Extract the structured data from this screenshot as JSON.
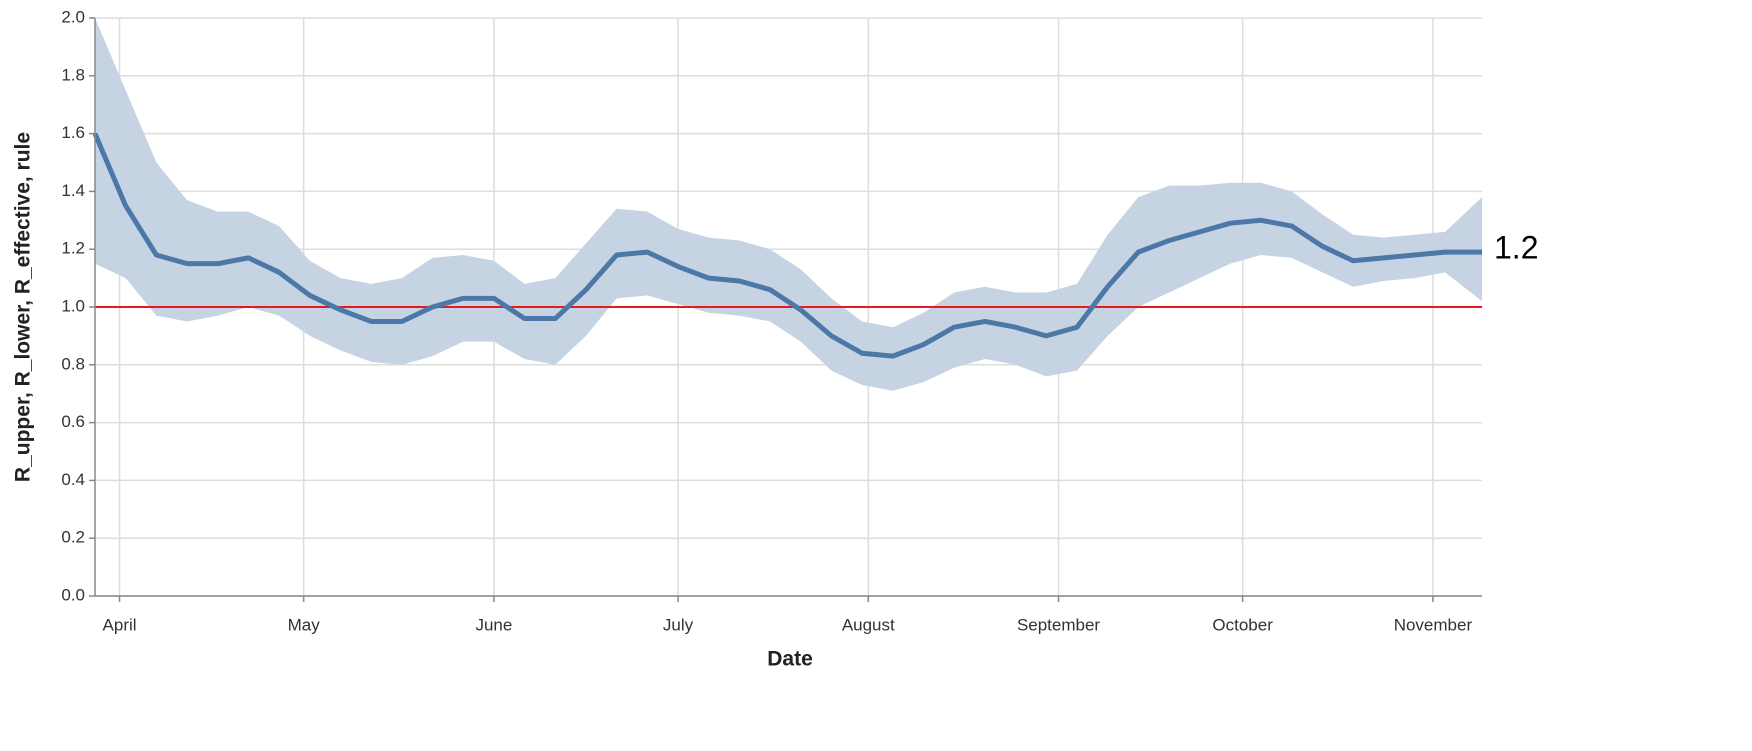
{
  "chart_data": {
    "type": "line",
    "x_label": "Date",
    "y_label": "R_upper, R_lower, R_effective, rule",
    "annotation": "1.2",
    "x": [
      0,
      5,
      10,
      15,
      20,
      25,
      30,
      35,
      40,
      45,
      50,
      55,
      60,
      65,
      70,
      75,
      80,
      85,
      90,
      95,
      100,
      105,
      110,
      115,
      120,
      125,
      130,
      135,
      140,
      145,
      150,
      155,
      160,
      165,
      170,
      175,
      180,
      185,
      190,
      195,
      200,
      205,
      210,
      215,
      220,
      226
    ],
    "effective": [
      1.6,
      1.35,
      1.18,
      1.15,
      1.15,
      1.17,
      1.12,
      1.04,
      0.99,
      0.95,
      0.95,
      1.0,
      1.03,
      1.03,
      0.96,
      0.96,
      1.06,
      1.18,
      1.19,
      1.14,
      1.1,
      1.09,
      1.06,
      0.99,
      0.9,
      0.84,
      0.83,
      0.87,
      0.93,
      0.95,
      0.93,
      0.9,
      0.93,
      1.07,
      1.19,
      1.23,
      1.26,
      1.29,
      1.3,
      1.28,
      1.21,
      1.16,
      1.17,
      1.18,
      1.19,
      1.19
    ],
    "upper": [
      2.0,
      1.75,
      1.5,
      1.37,
      1.33,
      1.33,
      1.28,
      1.16,
      1.1,
      1.08,
      1.1,
      1.17,
      1.18,
      1.16,
      1.08,
      1.1,
      1.22,
      1.34,
      1.33,
      1.27,
      1.24,
      1.23,
      1.2,
      1.13,
      1.03,
      0.95,
      0.93,
      0.98,
      1.05,
      1.07,
      1.05,
      1.05,
      1.08,
      1.25,
      1.38,
      1.42,
      1.42,
      1.43,
      1.43,
      1.4,
      1.32,
      1.25,
      1.24,
      1.25,
      1.26,
      1.38
    ],
    "lower": [
      1.15,
      1.1,
      0.97,
      0.95,
      0.97,
      1.0,
      0.97,
      0.9,
      0.85,
      0.81,
      0.8,
      0.83,
      0.88,
      0.88,
      0.82,
      0.8,
      0.9,
      1.03,
      1.04,
      1.01,
      0.98,
      0.97,
      0.95,
      0.88,
      0.78,
      0.73,
      0.71,
      0.74,
      0.79,
      0.82,
      0.8,
      0.76,
      0.78,
      0.9,
      1.0,
      1.05,
      1.1,
      1.15,
      1.18,
      1.17,
      1.12,
      1.07,
      1.09,
      1.1,
      1.12,
      1.02
    ],
    "rule": 1.0,
    "line_color": "#4c78a8",
    "band_color": "#c6d3e3",
    "rule_color": "#e41a1c",
    "xlim": [
      0,
      226
    ],
    "xticks": [
      {
        "value": 4,
        "label": "April"
      },
      {
        "value": 34,
        "label": "May"
      },
      {
        "value": 65,
        "label": "June"
      },
      {
        "value": 95,
        "label": "July"
      },
      {
        "value": 126,
        "label": "August"
      },
      {
        "value": 157,
        "label": "September"
      },
      {
        "value": 187,
        "label": "October"
      },
      {
        "value": 218,
        "label": "November"
      }
    ],
    "ylim": [
      0,
      2
    ],
    "yticks": [
      {
        "value": 0,
        "label": "0.0"
      },
      0.2,
      0.4,
      0.6,
      0.8,
      {
        "value": 1,
        "label": "1.0"
      },
      1.2,
      1.4,
      1.6,
      1.8,
      {
        "value": 2,
        "label": "2.0"
      }
    ],
    "grid": true
  }
}
